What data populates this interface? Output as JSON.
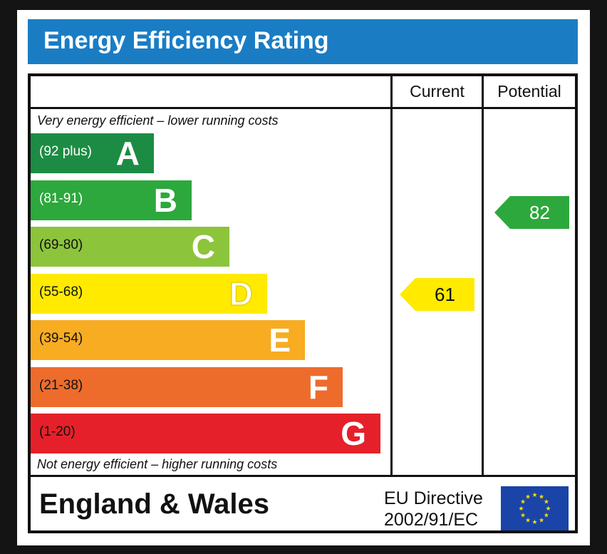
{
  "title": "Energy Efficiency Rating",
  "columns": {
    "current": "Current",
    "potential": "Potential"
  },
  "top_caption": "Very energy efficient – lower running costs",
  "bottom_caption": "Not energy efficient – higher running costs",
  "bands": [
    {
      "letter": "A",
      "range": "(92 plus)",
      "color": "#1c8c44",
      "range_color": "#ffffff"
    },
    {
      "letter": "B",
      "range": "(81-91)",
      "color": "#2da83c",
      "range_color": "#ffffff"
    },
    {
      "letter": "C",
      "range": "(69-80)",
      "color": "#8cc43c",
      "range_color": "#111111"
    },
    {
      "letter": "D",
      "range": "(55-68)",
      "color": "#ffea00",
      "range_color": "#111111"
    },
    {
      "letter": "E",
      "range": "(39-54)",
      "color": "#f7ac22",
      "range_color": "#111111"
    },
    {
      "letter": "F",
      "range": "(21-38)",
      "color": "#ed6c2c",
      "range_color": "#111111"
    },
    {
      "letter": "G",
      "range": "(1-20)",
      "color": "#e5202a",
      "range_color": "#111111"
    }
  ],
  "current_rating": {
    "value": "61",
    "band": "D",
    "color": "#ffea00",
    "text_color": "#111111"
  },
  "potential_rating": {
    "value": "82",
    "band": "B",
    "color": "#2da83c",
    "text_color": "#ffffff"
  },
  "footer": {
    "country": "England & Wales",
    "directive_line1": "EU Directive",
    "directive_line2": "2002/91/EC",
    "flag": "eu-flag-icon"
  }
}
